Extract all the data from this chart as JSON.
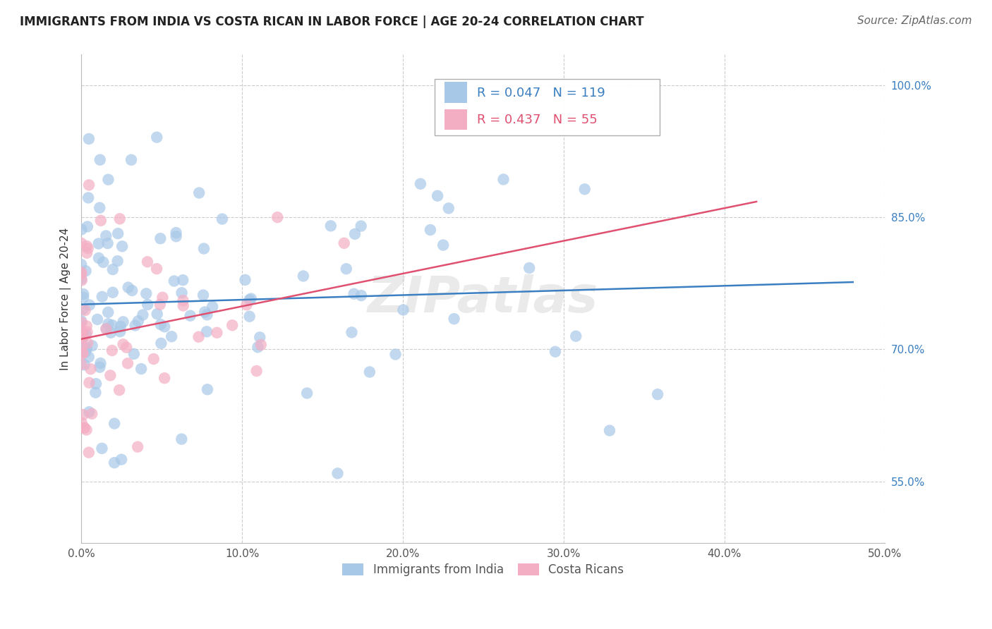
{
  "title": "IMMIGRANTS FROM INDIA VS COSTA RICAN IN LABOR FORCE | AGE 20-24 CORRELATION CHART",
  "source": "Source: ZipAtlas.com",
  "ylabel": "In Labor Force | Age 20-24",
  "xlim": [
    0.0,
    0.5
  ],
  "ylim": [
    0.48,
    1.035
  ],
  "xticklabels": [
    "0.0%",
    "10.0%",
    "20.0%",
    "30.0%",
    "40.0%",
    "50.0%"
  ],
  "xtick_vals": [
    0.0,
    0.1,
    0.2,
    0.3,
    0.4,
    0.5
  ],
  "ytick_vals": [
    0.55,
    0.7,
    0.85,
    1.0
  ],
  "yticklabels": [
    "55.0%",
    "70.0%",
    "85.0%",
    "100.0%"
  ],
  "grid_ytick_vals": [
    0.55,
    0.7,
    0.85,
    1.0
  ],
  "blue_color": "#a8c8e8",
  "pink_color": "#f4aec4",
  "blue_line_color": "#3a7fc1",
  "pink_line_color": "#e05070",
  "R_blue": 0.047,
  "N_blue": 119,
  "R_pink": 0.437,
  "N_pink": 55,
  "watermark": "ZIPatlas",
  "background_color": "#ffffff",
  "grid_color": "#cccccc",
  "title_fontsize": 12,
  "axis_label_fontsize": 11,
  "tick_fontsize": 11,
  "source_fontsize": 11
}
